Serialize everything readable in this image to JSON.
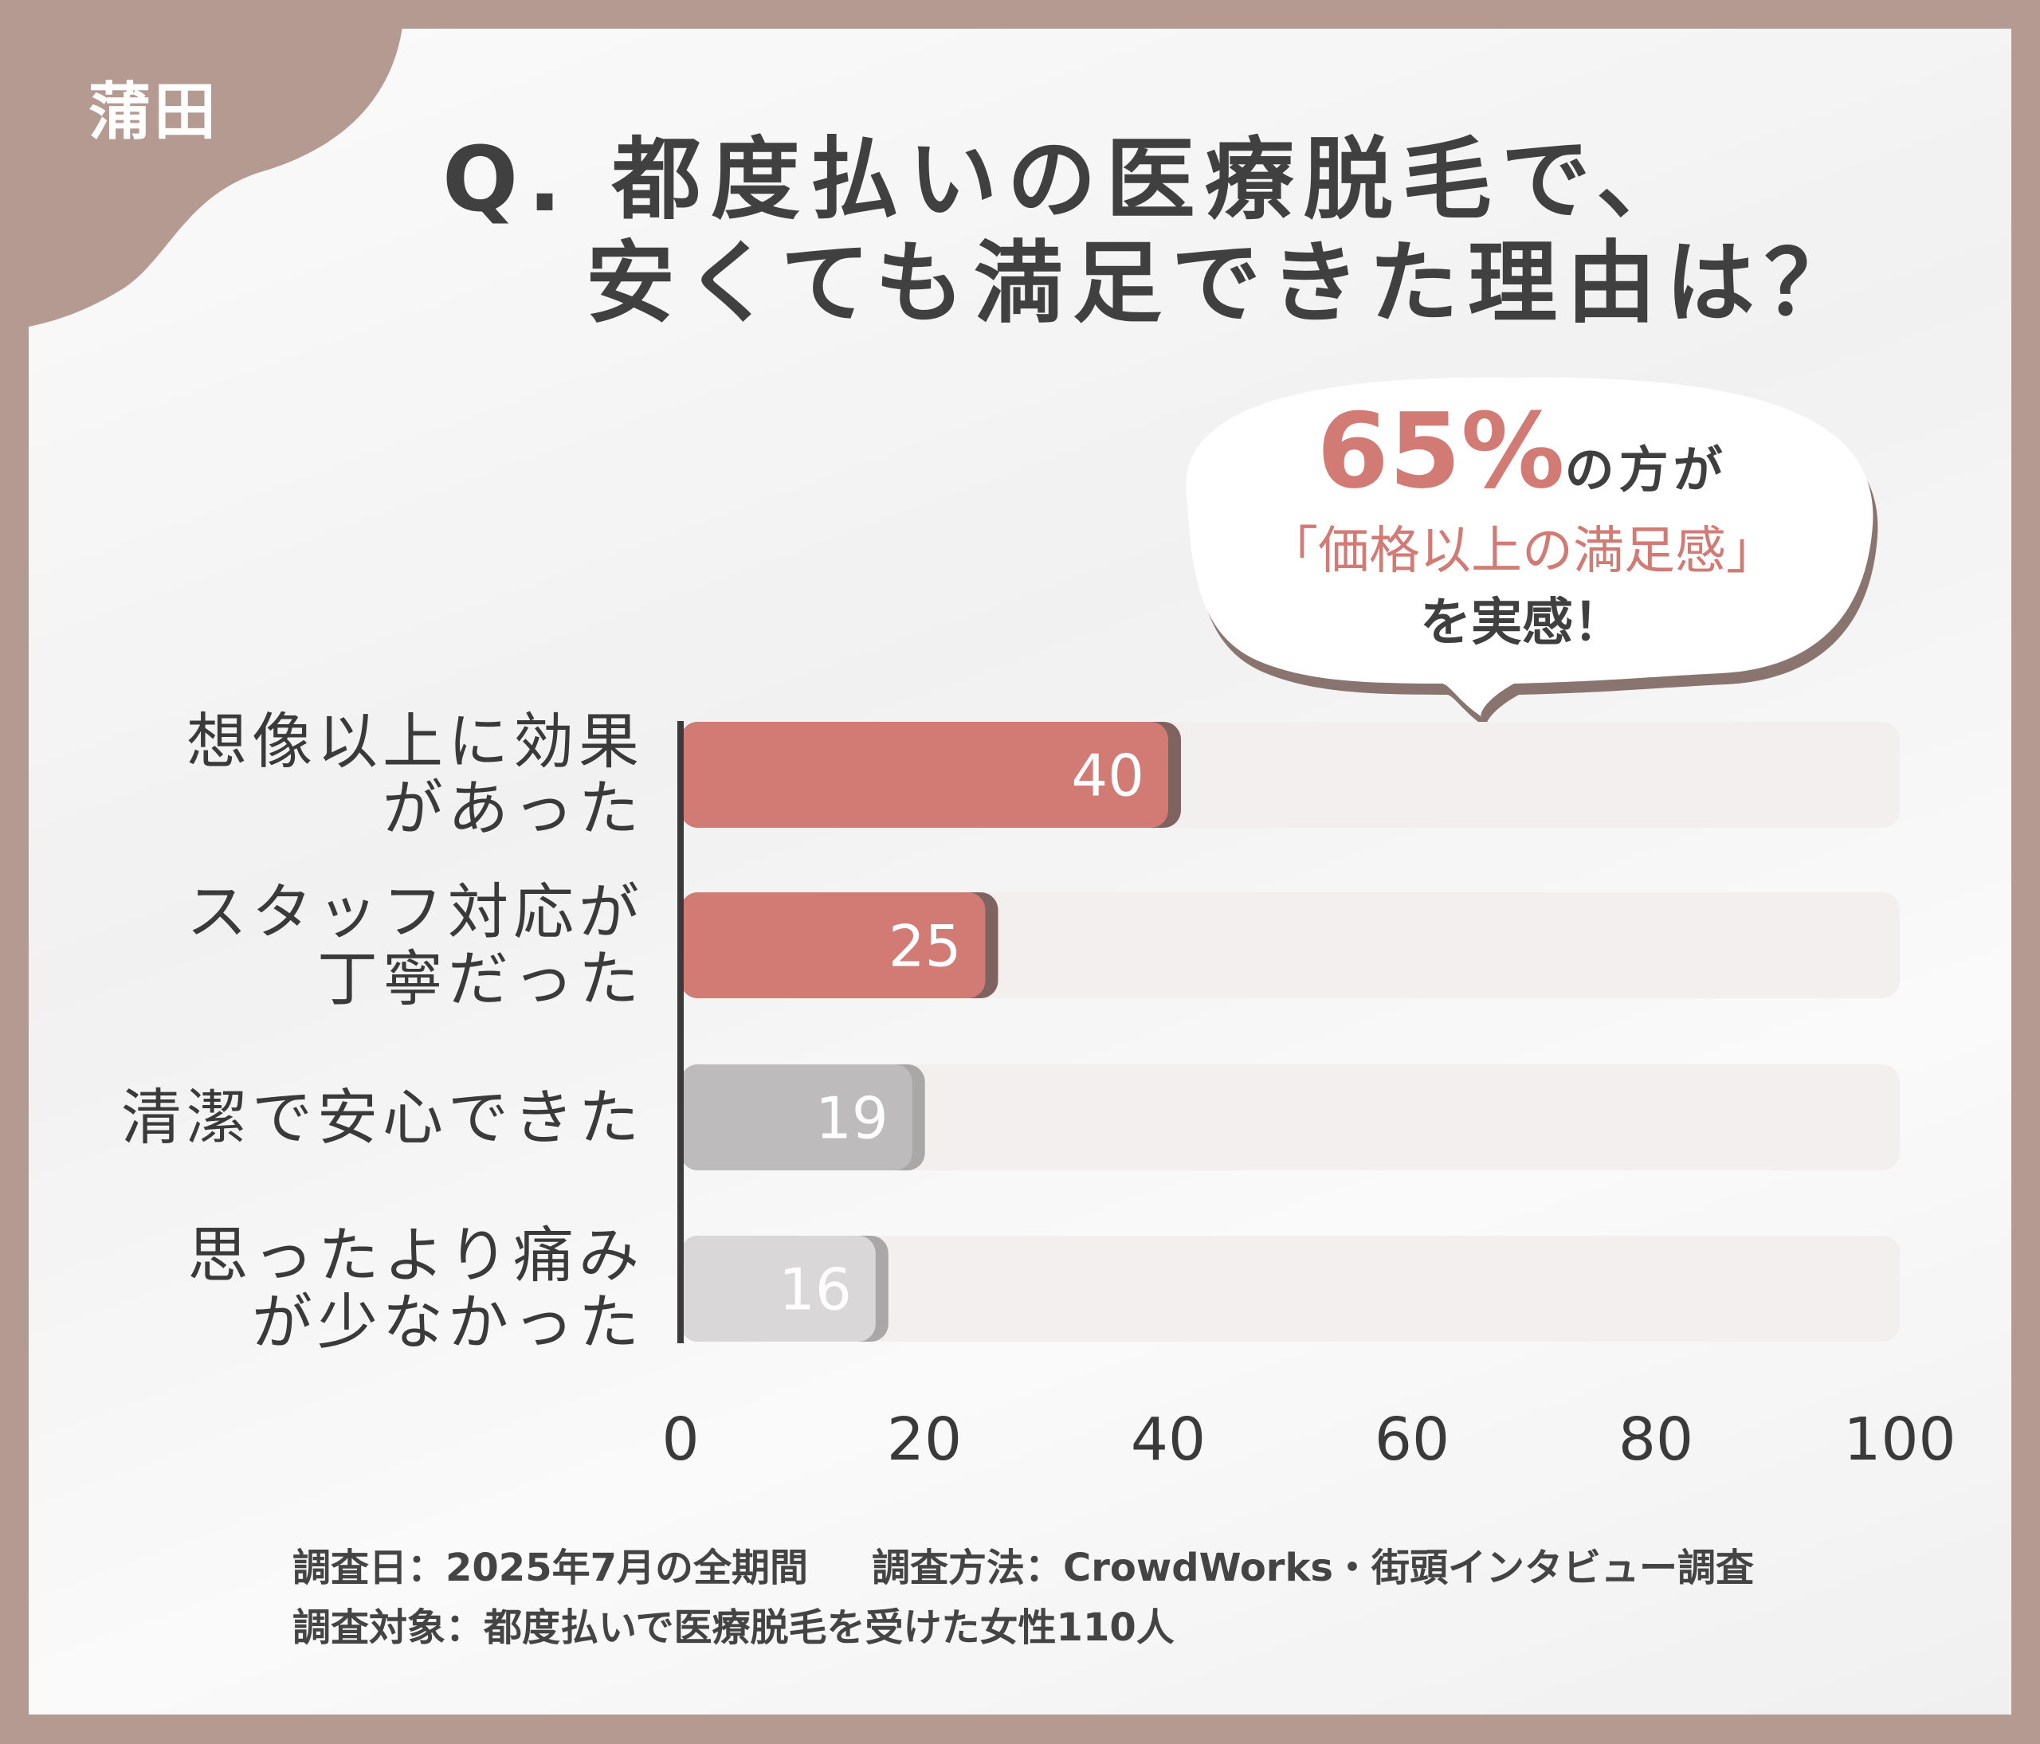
{
  "area_label": "蒲田",
  "title": {
    "line1": "Q. 都度払いの医療脱毛で、",
    "line2": "安くても満足できた理由は？"
  },
  "callout": {
    "percent": "65%",
    "line1_suffix": "の方が",
    "line2": "「価格以上の満足感」",
    "line3": "を実感！"
  },
  "colors": {
    "highlight": "#d27a74",
    "highlight_shadow": "#7e6360",
    "gray1": "#bdbbbb",
    "gray2": "#d9d7d7",
    "track": "#f3efee",
    "frame": "#b59a91"
  },
  "chart_data": {
    "type": "bar",
    "orientation": "horizontal",
    "categories": [
      "想像以上に効果\nがあった",
      "スタッフ対応が\n丁寧だった",
      "清潔で安心できた",
      "思ったより痛み\nが少なかった"
    ],
    "values": [
      40,
      25,
      19,
      16
    ],
    "data_labels": [
      "40",
      "25",
      "19",
      "16"
    ],
    "xlim": [
      0,
      100
    ],
    "xticks": [
      "0",
      "20",
      "40",
      "60",
      "80",
      "100"
    ],
    "grid": false
  },
  "footer": {
    "line1_a": "調査日：2025年7月の全期間",
    "line1_b": "調査方法：CrowdWorks・街頭インタビュー調査",
    "line2": "調査対象：都度払いで医療脱毛を受けた女性110人"
  }
}
